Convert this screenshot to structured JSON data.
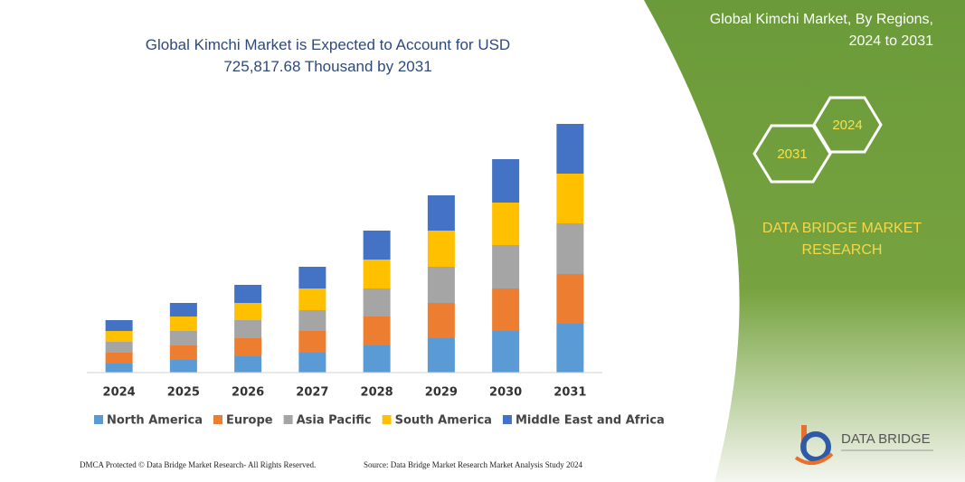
{
  "chart_data": {
    "type": "stacked-bar",
    "title": "Global Kimchi Market is Expected to Account for USD 725,817.68 Thousand  by 2031",
    "categories": [
      "2024",
      "2025",
      "2026",
      "2027",
      "2028",
      "2029",
      "2030",
      "2031"
    ],
    "series": [
      {
        "name": "North America",
        "color": "#5b9bd5",
        "values": [
          10,
          14,
          18,
          22,
          30,
          38,
          46,
          54
        ]
      },
      {
        "name": "Europe",
        "color": "#ed7d31",
        "values": [
          12,
          16,
          20,
          24,
          32,
          39,
          47,
          55
        ]
      },
      {
        "name": "Asia Pacific",
        "color": "#a5a5a5",
        "values": [
          12,
          16,
          20,
          23,
          31,
          40,
          48,
          56
        ]
      },
      {
        "name": "South America",
        "color": "#ffc000",
        "values": [
          12,
          16,
          19,
          24,
          32,
          40,
          47,
          55
        ]
      },
      {
        "name": "Middle East and Africa",
        "color": "#4472c4",
        "values": [
          12,
          15,
          20,
          24,
          32,
          39,
          48,
          55
        ]
      }
    ]
  },
  "panel": {
    "title_lines": [
      "Global Kimchi Market, By Regions,",
      "2024 to 2031"
    ],
    "hexagons": [
      "2024",
      "2031"
    ],
    "brand_lines": [
      "DATA BRIDGE MARKET",
      "RESEARCH"
    ],
    "logo": "DATA BRIDGE"
  },
  "footer": {
    "left": "DMCA Protected © Data Bridge Market Research-  All Rights Reserved.",
    "right": "Source: Data Bridge Market Research  Market Analysis Study 2024"
  }
}
